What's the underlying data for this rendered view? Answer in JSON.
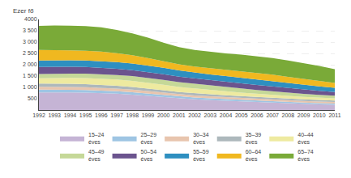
{
  "chart_data": {
    "type": "area",
    "stacked": true,
    "ylabel": "Ezer fő",
    "x": [
      1992,
      1993,
      1994,
      1995,
      1996,
      1997,
      1998,
      1999,
      2000,
      2001,
      2002,
      2003,
      2004,
      2005,
      2006,
      2007,
      2008,
      2009,
      2010,
      2011
    ],
    "series": [
      {
        "name": "15–24\néves",
        "color": "#c5b4d5",
        "values": [
          780,
          790,
          780,
          770,
          750,
          720,
          680,
          630,
          570,
          510,
          470,
          440,
          410,
          380,
          350,
          320,
          295,
          270,
          250,
          235
        ]
      },
      {
        "name": "25–29\néves",
        "color": "#9ec5e3",
        "values": [
          120,
          118,
          115,
          112,
          110,
          107,
          103,
          98,
          92,
          87,
          82,
          77,
          73,
          69,
          66,
          63,
          61,
          58,
          56,
          54
        ]
      },
      {
        "name": "30–34\néves",
        "color": "#e8c5ae",
        "values": [
          130,
          128,
          126,
          124,
          122,
          120,
          117,
          113,
          107,
          101,
          95,
          90,
          86,
          82,
          78,
          76,
          73,
          71,
          69,
          66
        ]
      },
      {
        "name": "35–39\néves",
        "color": "#adb8bc",
        "values": [
          140,
          138,
          136,
          134,
          131,
          127,
          122,
          116,
          108,
          100,
          96,
          91,
          87,
          83,
          80,
          77,
          74,
          72,
          70,
          67
        ]
      },
      {
        "name": "40–44\néves",
        "color": "#eeeaa0",
        "values": [
          230,
          248,
          262,
          268,
          272,
          270,
          265,
          253,
          238,
          218,
          202,
          187,
          172,
          157,
          143,
          132,
          121,
          113,
          106,
          99
        ]
      },
      {
        "name": "45–49\néves",
        "color": "#c5d898",
        "values": [
          190,
          188,
          190,
          196,
          202,
          205,
          210,
          215,
          216,
          216,
          212,
          206,
          197,
          184,
          170,
          157,
          144,
          132,
          120,
          109
        ]
      },
      {
        "name": "50–54\néves",
        "color": "#6b548e",
        "values": [
          310,
          305,
          300,
          295,
          285,
          275,
          265,
          255,
          250,
          245,
          240,
          235,
          230,
          225,
          218,
          210,
          200,
          188,
          175,
          162
        ]
      },
      {
        "name": "55–59\néves",
        "color": "#2e8fc0",
        "values": [
          290,
          285,
          285,
          288,
          292,
          295,
          295,
          292,
          282,
          270,
          256,
          248,
          242,
          238,
          235,
          230,
          222,
          213,
          200,
          186
        ]
      },
      {
        "name": "60–64\néves",
        "color": "#f0b820",
        "values": [
          460,
          452,
          442,
          432,
          416,
          392,
          362,
          326,
          291,
          272,
          271,
          281,
          291,
          300,
          306,
          296,
          276,
          256,
          236,
          216
        ]
      },
      {
        "name": "65–74\néves",
        "color": "#7aaa38",
        "values": [
          1060,
          1080,
          1090,
          1082,
          1068,
          1026,
          966,
          895,
          815,
          755,
          724,
          714,
          714,
          724,
          733,
          738,
          724,
          704,
          668,
          614
        ]
      }
    ],
    "xlim": [
      1992,
      2011
    ],
    "xticks": [
      1992,
      1993,
      1994,
      1995,
      1996,
      1997,
      1998,
      1999,
      2000,
      2001,
      2002,
      2003,
      2004,
      2005,
      2006,
      2007,
      2008,
      2009,
      2010,
      2011
    ],
    "ylim": [
      0,
      4000
    ],
    "yticks": [
      500,
      {
        "value": 1000,
        "label": "1 000"
      },
      {
        "value": 1500,
        "label": "1 500"
      },
      {
        "value": 2000,
        "label": "2 000"
      },
      {
        "value": 2500,
        "label": "2 500"
      },
      {
        "value": 3000,
        "label": "3 000"
      },
      {
        "value": 3500,
        "label": "3 500"
      },
      4000
    ],
    "grid": true,
    "legend": "bottom"
  }
}
